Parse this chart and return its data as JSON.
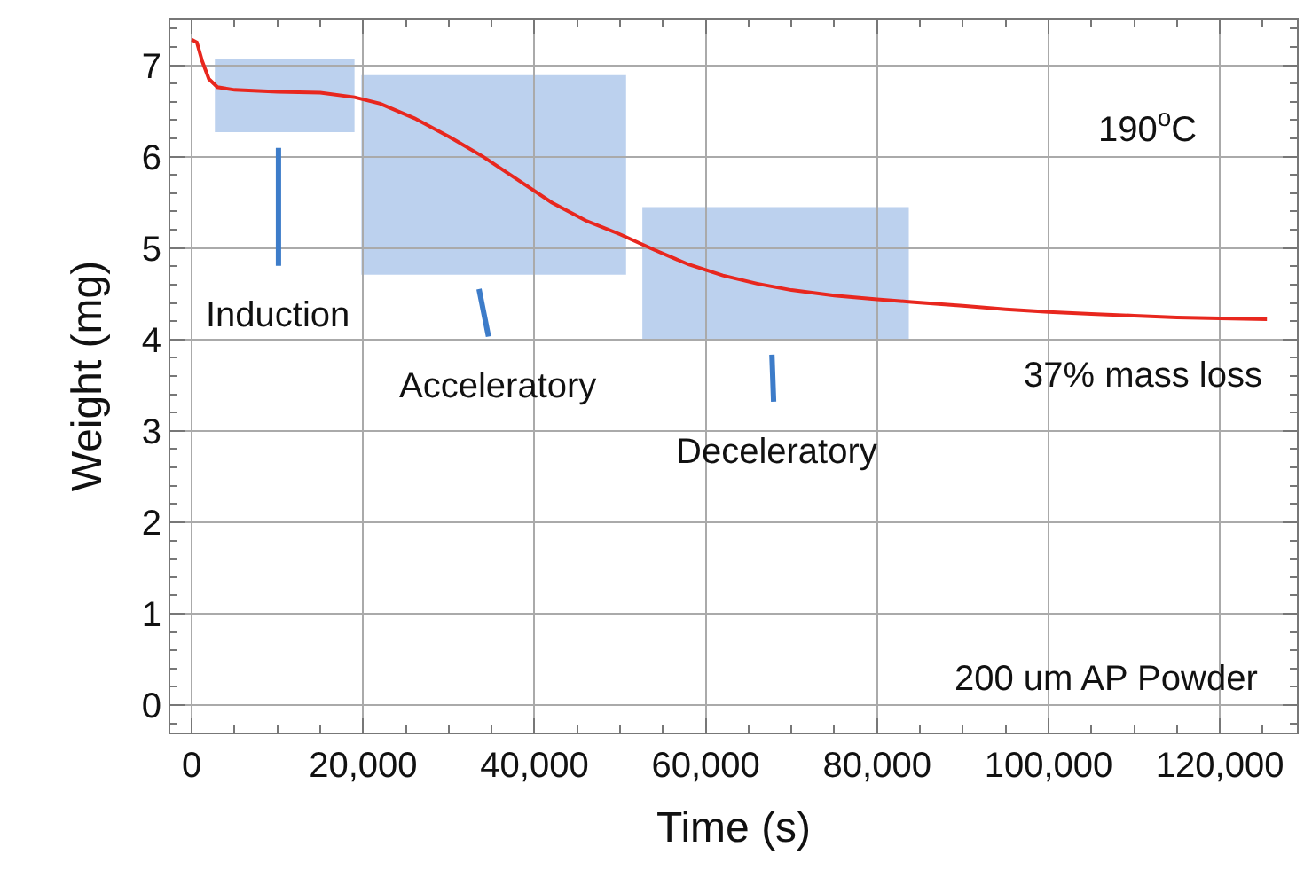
{
  "chart_data": {
    "type": "line",
    "xlabel": "Time (s)",
    "ylabel": "Weight (mg)",
    "x": [
      0,
      600,
      1200,
      2000,
      3000,
      5000,
      10000,
      15000,
      19000,
      22000,
      26000,
      30000,
      34000,
      38000,
      42000,
      46000,
      50000,
      54000,
      58000,
      62000,
      66000,
      70000,
      75000,
      80000,
      84000,
      90000,
      95000,
      100000,
      105000,
      110000,
      115000,
      120000,
      125500
    ],
    "series": [
      {
        "color": "#e8271e",
        "values": [
          7.28,
          7.25,
          7.05,
          6.85,
          6.76,
          6.73,
          6.71,
          6.7,
          6.65,
          6.58,
          6.42,
          6.22,
          6.0,
          5.75,
          5.5,
          5.3,
          5.15,
          4.98,
          4.82,
          4.7,
          4.61,
          4.54,
          4.48,
          4.44,
          4.41,
          4.37,
          4.33,
          4.3,
          4.28,
          4.26,
          4.24,
          4.23,
          4.22
        ]
      }
    ],
    "xlim": [
      -2500,
      129000
    ],
    "ylim": [
      -0.3,
      7.5
    ],
    "xticks": [
      {
        "value": 0,
        "label": "0"
      },
      {
        "value": 20000,
        "label": "20,000"
      },
      {
        "value": 40000,
        "label": "40,000"
      },
      {
        "value": 60000,
        "label": "60,000"
      },
      {
        "value": 80000,
        "label": "80,000"
      },
      {
        "value": 100000,
        "label": "100,000"
      },
      {
        "value": 120000,
        "label": "120,000"
      }
    ],
    "yticks": [
      0,
      1,
      2,
      3,
      4,
      5,
      6,
      7
    ],
    "grid": true,
    "marker": "none",
    "line_style": "solid",
    "bands": [
      {
        "axis": "x",
        "from": 2700,
        "to": 19000,
        "color": "#8fb3e3"
      },
      {
        "axis": "x",
        "from": 19800,
        "to": 50700,
        "color": "#8fb3e3"
      },
      {
        "axis": "x",
        "from": 52600,
        "to": 83700,
        "color": "#8fb3e3"
      }
    ],
    "annotations": [
      "Induction",
      "Acceleratory",
      "Deceleratory",
      "190$^{o}$C",
      "37% mass loss",
      "200 um AP Powder"
    ]
  }
}
